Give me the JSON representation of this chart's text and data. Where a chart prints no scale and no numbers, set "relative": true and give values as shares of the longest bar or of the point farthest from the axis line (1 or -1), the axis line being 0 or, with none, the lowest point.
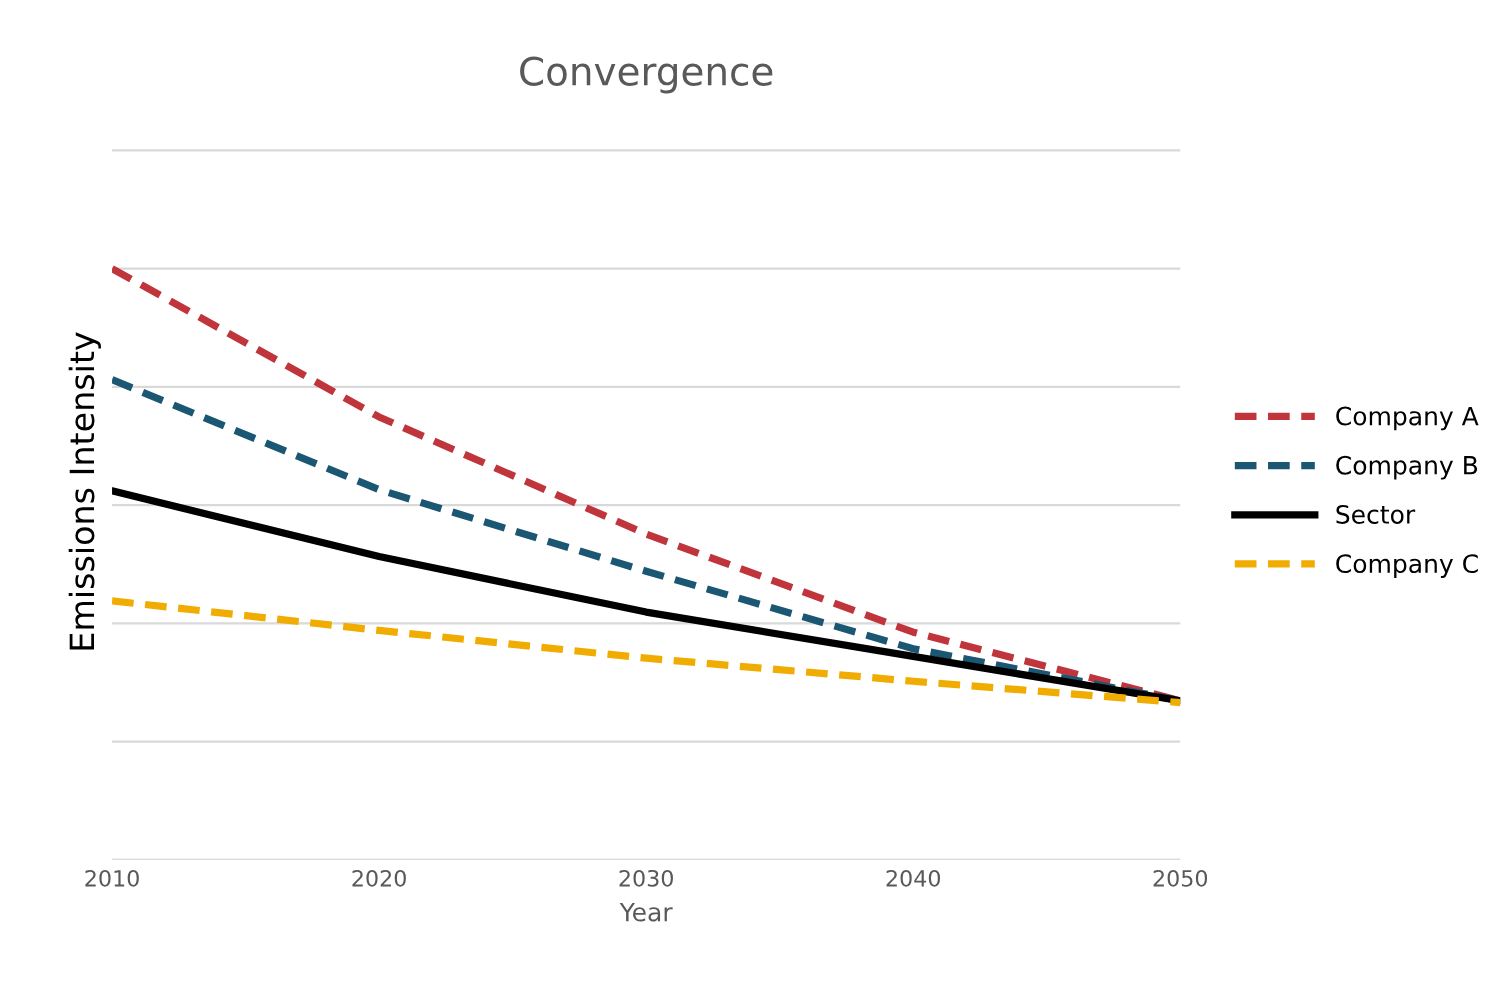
{
  "chart_data": {
    "type": "line",
    "title": "Convergence",
    "xlabel": "Year",
    "ylabel": "Emissions Intensity",
    "relative": true,
    "x": [
      2010,
      2020,
      2030,
      2040,
      2050
    ],
    "xlim": [
      2010,
      2050
    ],
    "xticks": [
      2010,
      2020,
      2030,
      2040,
      2050
    ],
    "tick_labels": "x",
    "grid": "y",
    "legend": "right",
    "marker": "none",
    "series": [
      {
        "name": "Company A",
        "color": "#c0343c",
        "line_style": "dashed",
        "values": [
          1.0,
          0.749,
          0.551,
          0.385,
          0.269
        ]
      },
      {
        "name": "Company B",
        "color": "#1b5673",
        "line_style": "dashed",
        "values": [
          0.812,
          0.626,
          0.488,
          0.357,
          0.269
        ]
      },
      {
        "name": "Sector",
        "color": "#000000",
        "line_style": "solid",
        "values": [
          0.624,
          0.513,
          0.419,
          0.344,
          0.269
        ]
      },
      {
        "name": "Company C",
        "color": "#f0ac00",
        "line_style": "dashed",
        "values": [
          0.438,
          0.388,
          0.341,
          0.302,
          0.266
        ]
      }
    ]
  }
}
